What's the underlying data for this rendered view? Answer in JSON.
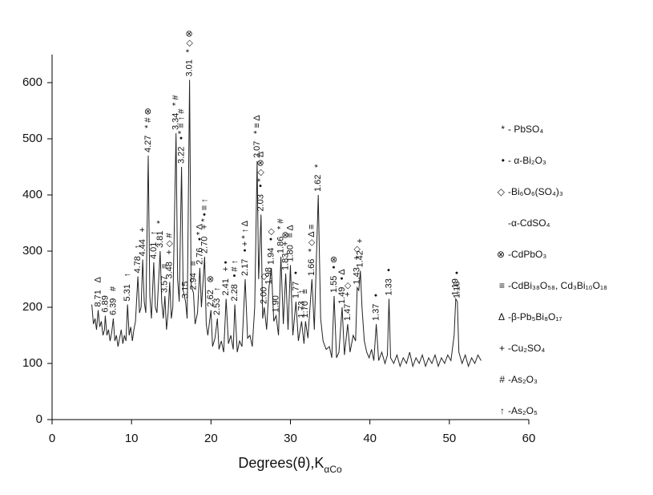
{
  "chart_data": {
    "type": "line",
    "x_label": "Degrees(θ),K",
    "x_label_sub": "αCo",
    "color": "#222222",
    "xlim": [
      0,
      60
    ],
    "xticks": [
      0,
      10,
      20,
      30,
      40,
      50,
      60
    ],
    "ylim": [
      0,
      650
    ],
    "yticks": [
      0,
      100,
      200,
      300,
      400,
      500,
      600
    ],
    "x": [
      5.0,
      5.2,
      5.4,
      5.6,
      5.8,
      6.0,
      6.2,
      6.4,
      6.6,
      6.7,
      6.9,
      7.1,
      7.3,
      7.5,
      7.7,
      7.9,
      8.1,
      8.3,
      8.5,
      8.7,
      8.9,
      9.1,
      9.3,
      9.5,
      9.7,
      9.9,
      10.1,
      10.3,
      10.5,
      10.8,
      11.0,
      11.2,
      11.4,
      11.6,
      11.8,
      12.1,
      12.3,
      12.5,
      12.8,
      13.0,
      13.2,
      13.6,
      13.8,
      14.0,
      14.2,
      14.4,
      14.6,
      14.8,
      15.0,
      15.2,
      15.6,
      15.8,
      16.0,
      16.3,
      16.5,
      16.8,
      17.0,
      17.3,
      17.5,
      17.8,
      18.0,
      18.3,
      18.6,
      18.8,
      19.2,
      19.4,
      19.6,
      20.0,
      20.2,
      20.5,
      20.8,
      21.0,
      21.3,
      21.6,
      21.9,
      22.2,
      22.5,
      22.8,
      23.0,
      23.3,
      23.6,
      23.9,
      24.3,
      24.6,
      24.9,
      25.2,
      25.5,
      25.8,
      26.0,
      26.3,
      26.5,
      26.7,
      27.0,
      27.3,
      27.6,
      27.9,
      28.2,
      28.5,
      28.8,
      29.1,
      29.4,
      29.7,
      30.0,
      30.3,
      30.7,
      31.0,
      31.4,
      31.7,
      31.9,
      32.2,
      32.7,
      33.0,
      33.5,
      33.8,
      34.1,
      34.5,
      34.9,
      35.2,
      35.5,
      35.8,
      36.1,
      36.5,
      36.8,
      37.2,
      37.5,
      37.9,
      38.2,
      38.4,
      38.6,
      38.8,
      39.0,
      39.3,
      39.6,
      39.9,
      40.2,
      40.5,
      40.8,
      41.1,
      41.5,
      41.9,
      42.2,
      42.4,
      42.6,
      43.0,
      43.4,
      43.8,
      44.2,
      44.6,
      45.0,
      45.4,
      45.8,
      46.2,
      46.6,
      47.0,
      47.4,
      47.8,
      48.2,
      48.6,
      49.0,
      49.4,
      49.8,
      50.2,
      50.6,
      50.8,
      51.0,
      51.2,
      51.6,
      52.0,
      52.4,
      52.8,
      53.2,
      53.6,
      54.0
    ],
    "values": [
      205,
      170,
      180,
      160,
      195,
      165,
      175,
      150,
      160,
      185,
      150,
      160,
      140,
      155,
      180,
      140,
      150,
      130,
      145,
      160,
      135,
      150,
      140,
      205,
      150,
      165,
      140,
      160,
      175,
      255,
      190,
      200,
      285,
      210,
      190,
      470,
      220,
      180,
      280,
      200,
      190,
      300,
      210,
      180,
      220,
      160,
      190,
      245,
      180,
      200,
      510,
      250,
      210,
      450,
      230,
      210,
      180,
      605,
      240,
      225,
      170,
      190,
      270,
      200,
      290,
      170,
      150,
      195,
      130,
      145,
      180,
      125,
      140,
      120,
      215,
      135,
      150,
      125,
      205,
      120,
      140,
      130,
      250,
      145,
      150,
      130,
      200,
      460,
      250,
      365,
      180,
      200,
      160,
      235,
      270,
      175,
      185,
      150,
      290,
      170,
      260,
      160,
      275,
      150,
      210,
      140,
      175,
      135,
      175,
      145,
      250,
      160,
      400,
      180,
      140,
      125,
      130,
      110,
      220,
      110,
      120,
      200,
      115,
      170,
      120,
      150,
      140,
      235,
      230,
      265,
      200,
      140,
      120,
      110,
      125,
      105,
      170,
      105,
      120,
      100,
      115,
      215,
      110,
      100,
      115,
      95,
      110,
      100,
      120,
      95,
      110,
      100,
      115,
      95,
      110,
      100,
      115,
      95,
      110,
      100,
      115,
      105,
      150,
      215,
      210,
      120,
      100,
      115,
      95,
      110,
      100,
      115,
      105
    ],
    "peaks": [
      {
        "label": "8.71",
        "x": 5.8,
        "y": 195,
        "symbols": "Δ"
      },
      {
        "label": "6.89",
        "x": 6.7,
        "y": 185
      },
      {
        "label": "6.39",
        "x": 7.7,
        "y": 180,
        "symbols": "#"
      },
      {
        "label": "5.31",
        "x": 9.5,
        "y": 205,
        "symbols": "↑"
      },
      {
        "label": "4.78",
        "x": 10.8,
        "y": 255,
        "symbols": "↑"
      },
      {
        "label": "4.44",
        "x": 11.4,
        "y": 285,
        "symbols": "+"
      },
      {
        "label": "4.27",
        "x": 12.1,
        "y": 470,
        "symbols": "* # ⊗"
      },
      {
        "label": "4.01",
        "x": 12.8,
        "y": 280,
        "symbols": "↑"
      },
      {
        "label": "3.81",
        "x": 13.6,
        "y": 300,
        "symbols": "*"
      },
      {
        "label": "3.57",
        "x": 14.2,
        "y": 220,
        "symbols": "≡"
      },
      {
        "label": "3.48",
        "x": 14.8,
        "y": 245,
        "symbols": "+ ◇ #"
      },
      {
        "label": "3.34",
        "x": 15.6,
        "y": 510,
        "symbols": "* #"
      },
      {
        "label": "3.22",
        "x": 16.3,
        "y": 450,
        "symbols": "• * ≡ ↑ #"
      },
      {
        "label": "3.15",
        "x": 16.8,
        "y": 210
      },
      {
        "label": "3.01",
        "x": 17.3,
        "y": 605,
        "symbols": "* ◇ ⊗"
      },
      {
        "label": "2.94",
        "x": 17.8,
        "y": 225,
        "symbols": "≡"
      },
      {
        "label": "2.76",
        "x": 18.6,
        "y": 270,
        "symbols": "• * Δ"
      },
      {
        "label": "2.70",
        "x": 19.2,
        "y": 290,
        "symbols": "+ * • ≡ ↑"
      },
      {
        "label": "2.62",
        "x": 20.0,
        "y": 195,
        "symbols": "⊗"
      },
      {
        "label": "2.53",
        "x": 20.8,
        "y": 180,
        "symbols": "↑"
      },
      {
        "label": "2.41",
        "x": 21.9,
        "y": 215,
        "symbols": "+ •"
      },
      {
        "label": "2.28",
        "x": 23.0,
        "y": 205,
        "symbols": "• # ↑"
      },
      {
        "label": "2.17",
        "x": 24.3,
        "y": 250,
        "symbols": "• + * ↑ Δ"
      },
      {
        "label": "2.07",
        "x": 25.8,
        "y": 460,
        "symbols": "* ≡ Δ"
      },
      {
        "label": "2.03",
        "x": 26.3,
        "y": 365,
        "symbols": "• * ◇ ⊗ Δ"
      },
      {
        "label": "2.00",
        "x": 26.7,
        "y": 200,
        "symbols": "◇"
      },
      {
        "label": "1.98",
        "x": 27.3,
        "y": 235
      },
      {
        "label": "1.94",
        "x": 27.6,
        "y": 270,
        "symbols": "• ◇"
      },
      {
        "label": "1.90",
        "x": 28.2,
        "y": 185
      },
      {
        "label": "1.86",
        "x": 28.8,
        "y": 290,
        "symbols": "* #"
      },
      {
        "label": "1.83",
        "x": 29.4,
        "y": 260,
        "symbols": "+ ⊗"
      },
      {
        "label": "1.80",
        "x": 30.0,
        "y": 275,
        "symbols": "≡ Δ"
      },
      {
        "label": "1.77",
        "x": 30.7,
        "y": 210,
        "symbols": "•"
      },
      {
        "label": "1.73",
        "x": 31.4,
        "y": 175,
        "symbols": "↑"
      },
      {
        "label": "1.70",
        "x": 31.9,
        "y": 175,
        "symbols": "≡"
      },
      {
        "label": "1.66",
        "x": 32.7,
        "y": 250,
        "symbols": "* ◇ Δ ≡"
      },
      {
        "label": "1.62",
        "x": 33.5,
        "y": 400,
        "symbols": "*"
      },
      {
        "label": "1.55",
        "x": 35.5,
        "y": 220,
        "symbols": "• ⊗"
      },
      {
        "label": "1.49",
        "x": 36.5,
        "y": 200,
        "symbols": "• Δ"
      },
      {
        "label": "1.47",
        "x": 37.2,
        "y": 170,
        "symbols": "+ ◇"
      },
      {
        "label": "1.43",
        "x": 38.4,
        "y": 235,
        "symbols": "+ ◇"
      },
      {
        "label": "1.42",
        "x": 38.8,
        "y": 265,
        "symbols": "+"
      },
      {
        "label": "1.37",
        "x": 40.8,
        "y": 170,
        "symbols": "•"
      },
      {
        "label": "1.33",
        "x": 42.4,
        "y": 215,
        "symbols": "•"
      },
      {
        "label": "1.19",
        "x": 50.8,
        "y": 215
      },
      {
        "label": "1.16",
        "x": 51.0,
        "y": 210,
        "symbols": "•"
      }
    ],
    "legend": [
      {
        "symbol": "*",
        "label": "- PbSO₄"
      },
      {
        "symbol": "•",
        "label": "- α-Bi₂O₃"
      },
      {
        "symbol": "◇",
        "label": "-Bi₆O₆(SO₄)₃"
      },
      {
        "label": "-α-CdSO₄"
      },
      {
        "symbol": "⊗",
        "label": "-CdPbO₃"
      },
      {
        "symbol": "≡",
        "label": "-CdBi₃₈O₅₈, Cd₃Bi₁₀O₁₈"
      },
      {
        "symbol": "Δ",
        "label": "-β-Pb₅Bi₈O₁₇"
      },
      {
        "symbol": "+",
        "label": "-Cu₂SO₄"
      },
      {
        "symbol": "#",
        "label": "-As₂O₃"
      },
      {
        "symbol": "↑",
        "label": "-As₂O₅"
      }
    ]
  }
}
